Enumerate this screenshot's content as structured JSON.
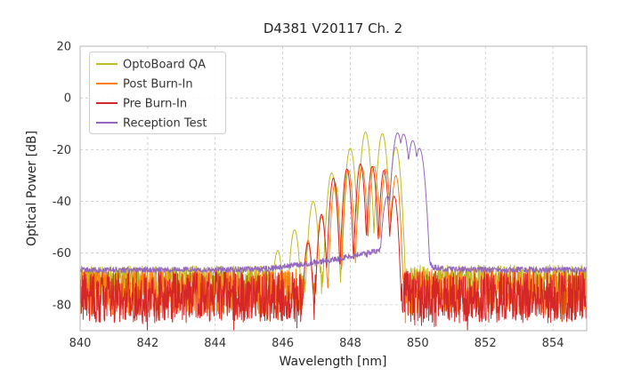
{
  "chart_data": {
    "type": "line",
    "title": "D4381 V20117 Ch. 2",
    "xlabel": "Wavelength [nm]",
    "ylabel": "Optical Power [dB]",
    "xlim": [
      840,
      855
    ],
    "ylim": [
      -90,
      20
    ],
    "xticks": [
      840,
      842,
      844,
      846,
      848,
      850,
      852,
      854
    ],
    "yticks": [
      20,
      0,
      -20,
      -40,
      -60,
      -80
    ],
    "grid": true,
    "grid_style": "dashed",
    "legend_position": "upper-left",
    "background": "#ffffff",
    "series": [
      {
        "name": "OptoBoard QA",
        "color": "#bcbd22",
        "noise_floor": -70.5,
        "noise_amplitude": 5.5,
        "peak_width_nm": 0.04,
        "baseline": [
          [
            840,
            -70.5
          ],
          [
            855,
            -70.0
          ]
        ],
        "peaks": [
          [
            845.35,
            -65
          ],
          [
            845.85,
            -59
          ],
          [
            846.35,
            -51
          ],
          [
            846.9,
            -40
          ],
          [
            847.45,
            -29
          ],
          [
            848.0,
            -19.5
          ],
          [
            848.45,
            -13.2
          ],
          [
            848.95,
            -13.8
          ],
          [
            849.35,
            -19
          ]
        ]
      },
      {
        "name": "Post Burn-In",
        "color": "#ff7f0e",
        "noise_floor": -75,
        "noise_amplitude": 9,
        "peak_width_nm": 0.033,
        "baseline": [
          [
            840,
            -75
          ],
          [
            855,
            -75
          ]
        ],
        "peaks": [
          [
            846.75,
            -55
          ],
          [
            847.15,
            -46
          ],
          [
            847.55,
            -33
          ],
          [
            847.95,
            -28
          ],
          [
            848.35,
            -27
          ],
          [
            848.7,
            -26.5
          ],
          [
            849.05,
            -27.5
          ],
          [
            849.35,
            -30
          ]
        ]
      },
      {
        "name": "Pre Burn-In",
        "color": "#d62728",
        "noise_floor": -77,
        "noise_amplitude": 10,
        "peak_width_nm": 0.033,
        "baseline": [
          [
            840,
            -77
          ],
          [
            855,
            -77
          ]
        ],
        "peaks": [
          [
            846.75,
            -56
          ],
          [
            847.15,
            -45
          ],
          [
            847.5,
            -31
          ],
          [
            847.9,
            -27.5
          ],
          [
            848.3,
            -25.5
          ],
          [
            848.65,
            -26.5
          ],
          [
            849.0,
            -28
          ],
          [
            849.3,
            -38
          ]
        ]
      },
      {
        "name": "Reception Test",
        "color": "#9467bd",
        "noise_floor": -66.5,
        "noise_amplitude": 1.1,
        "peak_width_nm": 0.045,
        "baseline": [
          [
            840,
            -66.6
          ],
          [
            844,
            -66.4
          ],
          [
            845.5,
            -66.1
          ],
          [
            846.5,
            -64.5
          ],
          [
            847.5,
            -62.5
          ],
          [
            848.3,
            -60.5
          ],
          [
            849.0,
            -58.5
          ],
          [
            849.6,
            -58.0
          ],
          [
            850.15,
            -61
          ],
          [
            850.45,
            -65.5
          ],
          [
            851,
            -66.3
          ],
          [
            855,
            -66.5
          ]
        ],
        "peaks": [
          [
            849.1,
            -38
          ],
          [
            849.4,
            -13.5
          ],
          [
            849.58,
            -14
          ],
          [
            849.85,
            -16.5
          ],
          [
            850.05,
            -19.5
          ]
        ]
      }
    ]
  }
}
